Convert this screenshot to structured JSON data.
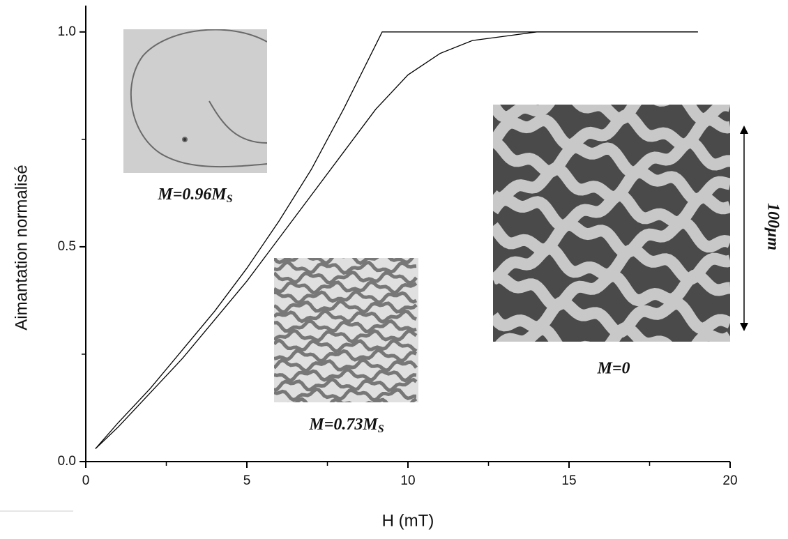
{
  "chart_data": {
    "type": "line",
    "xlabel": "H (mT)",
    "ylabel": "Aimantation normalisé",
    "xlim": [
      0,
      20
    ],
    "ylim": [
      0,
      1.05
    ],
    "xticks": [
      0,
      5,
      10,
      15,
      20
    ],
    "xminorticks": [
      2.5,
      7.5,
      12.5,
      17.5
    ],
    "yticks": [
      {
        "value": 0,
        "label": "0.0"
      },
      {
        "value": 0.5,
        "label": "0.5"
      },
      {
        "value": 1,
        "label": "1.0"
      }
    ],
    "yminorticks": [
      0.25,
      0.75
    ],
    "series": [
      {
        "color": "#000000",
        "x": [
          0.3,
          1,
          2,
          3,
          4,
          5,
          6,
          7,
          8,
          9,
          9.2,
          19
        ],
        "values": [
          0.03,
          0.09,
          0.17,
          0.26,
          0.35,
          0.45,
          0.56,
          0.68,
          0.82,
          0.97,
          1.0,
          1.0
        ]
      },
      {
        "color": "#000000",
        "x": [
          0.3,
          1,
          2,
          3,
          4,
          5,
          6,
          7,
          8,
          9,
          10,
          11,
          12,
          13,
          14,
          19
        ],
        "values": [
          0.03,
          0.08,
          0.16,
          0.24,
          0.33,
          0.42,
          0.52,
          0.62,
          0.72,
          0.82,
          0.9,
          0.95,
          0.98,
          0.99,
          1.0,
          1.0
        ]
      }
    ],
    "annotations": [
      {
        "text": "M=0.96M",
        "sub": "S"
      },
      {
        "text": "M=0.73M",
        "sub": "S"
      },
      {
        "text": "M=0"
      },
      {
        "text": "100μm"
      }
    ]
  }
}
